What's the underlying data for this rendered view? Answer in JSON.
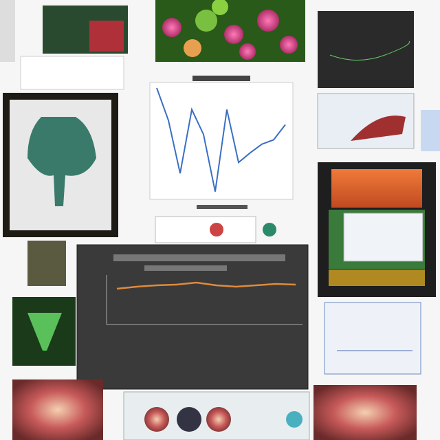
{
  "chart_data": [
    {
      "type": "line",
      "color": "#3a6fc4",
      "values": [
        100,
        70,
        21,
        80,
        57,
        4,
        80,
        31,
        40,
        48,
        52,
        66
      ],
      "ylim": [
        0,
        100
      ]
    },
    {
      "type": "line",
      "color": "#e08a3c",
      "values": [
        50,
        56,
        60,
        62,
        68,
        60,
        56,
        60,
        64,
        62
      ],
      "ylim": [
        0,
        100
      ]
    }
  ]
}
